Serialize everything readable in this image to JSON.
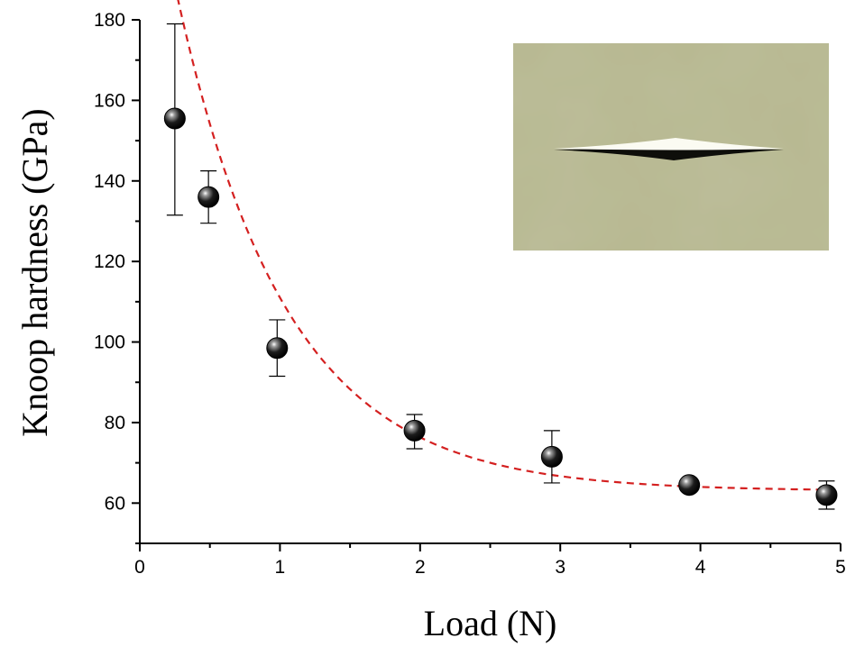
{
  "chart_data": {
    "type": "scatter",
    "xlabel": "Load (N)",
    "ylabel": "Knoop hardness (GPa)",
    "xlim": [
      0,
      5
    ],
    "ylim": [
      50,
      180
    ],
    "x_ticks": [
      0,
      1,
      2,
      3,
      4,
      5
    ],
    "y_ticks": [
      60,
      80,
      100,
      120,
      140,
      160,
      180
    ],
    "grid": false,
    "series": [
      {
        "marker": "black-sphere",
        "color": "#000000",
        "points": [
          {
            "x": 0.25,
            "y": 155.5,
            "err_low": 131.5,
            "err_high": 179
          },
          {
            "x": 0.49,
            "y": 136,
            "err_low": 129.5,
            "err_high": 142.5
          },
          {
            "x": 0.98,
            "y": 98.5,
            "err_low": 91.5,
            "err_high": 105.5
          },
          {
            "x": 1.96,
            "y": 78,
            "err_low": 73.5,
            "err_high": 82
          },
          {
            "x": 2.94,
            "y": 71.5,
            "err_low": 65,
            "err_high": 78
          },
          {
            "x": 3.92,
            "y": 64.5,
            "err_low": 64,
            "err_high": 65
          },
          {
            "x": 4.9,
            "y": 62,
            "err_low": 58.5,
            "err_high": 65.5
          }
        ]
      }
    ],
    "fit_curve": {
      "style": "dashed",
      "color": "#d42020",
      "x_range": [
        0.25,
        4.9
      ],
      "model": "exponential decay",
      "y0": 63,
      "a": 173,
      "t": 0.78
    },
    "inset": {
      "content": "photograph of Knoop indentation",
      "position": "top-right",
      "background_color": "#b7b890"
    }
  }
}
